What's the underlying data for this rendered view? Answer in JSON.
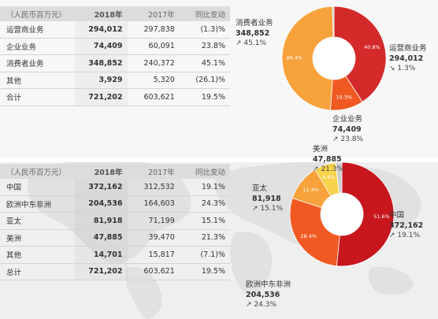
{
  "table1": {
    "header": {
      "label": "（人民币百万元）",
      "y2018": "2018年",
      "y2017": "2017年",
      "change": "同比变动"
    },
    "rows": [
      {
        "label": "运营商业务",
        "y2018": "294,012",
        "y2017": "297,838",
        "change": "(1.3)%"
      },
      {
        "label": "企业业务",
        "y2018": "74,409",
        "y2017": "60,091",
        "change": "23.8%"
      },
      {
        "label": "消费者业务",
        "y2018": "348,852",
        "y2017": "240,372",
        "change": "45.1%"
      },
      {
        "label": "其他",
        "y2018": "3,929",
        "y2017": "5,320",
        "change": "(26.1)%"
      },
      {
        "label": "合计",
        "y2018": "721,202",
        "y2017": "603,621",
        "change": "19.5%"
      }
    ]
  },
  "table2": {
    "header": {
      "label": "（人民币百万元）",
      "y2018": "2018年",
      "y2017": "2017年",
      "change": "同比变动"
    },
    "rows": [
      {
        "label": "中国",
        "y2018": "372,162",
        "y2017": "312,532",
        "change": "19.1%"
      },
      {
        "label": "欧洲中东非洲",
        "y2018": "204,536",
        "y2017": "164,603",
        "change": "24.3%"
      },
      {
        "label": "亚太",
        "y2018": "81,918",
        "y2017": "71,199",
        "change": "15.1%"
      },
      {
        "label": "美洲",
        "y2018": "47,885",
        "y2017": "39,470",
        "change": "21.3%"
      },
      {
        "label": "其他",
        "y2018": "14,701",
        "y2017": "15,817",
        "change": "(7.1)%"
      },
      {
        "label": "总计",
        "y2018": "721,202",
        "y2017": "603,621",
        "change": "19.5%"
      }
    ]
  },
  "chart_data": [
    {
      "type": "pie",
      "title": "",
      "slices": [
        {
          "name": "运营商业务",
          "value": 40.8,
          "label": "40.8%",
          "color": "#d42a2a",
          "callout_value": "294,012",
          "callout_change": "1.3%",
          "direction": "down"
        },
        {
          "name": "企业业务",
          "value": 10.3,
          "label": "10.3%",
          "color": "#f05a22",
          "callout_value": "74,409",
          "callout_change": "23.8%",
          "direction": "up"
        },
        {
          "name": "消费者业务",
          "value": 48.4,
          "label": "48.4%",
          "color": "#f8a23c",
          "callout_value": "348,852",
          "callout_change": "45.1%",
          "direction": "up"
        },
        {
          "name": "其他",
          "value": 0.5,
          "label": "",
          "color": "#bdbdbd",
          "callout_value": "",
          "callout_change": "",
          "direction": ""
        }
      ]
    },
    {
      "type": "pie",
      "title": "",
      "slices": [
        {
          "name": "中国",
          "value": 51.6,
          "label": "51.6%",
          "color": "#c8161d",
          "callout_value": "372,162",
          "callout_change": "19.1%",
          "direction": "up"
        },
        {
          "name": "欧洲中东非洲",
          "value": 28.4,
          "label": "28.4%",
          "color": "#f05a22",
          "callout_value": "204,536",
          "callout_change": "24.3%",
          "direction": "up"
        },
        {
          "name": "亚太",
          "value": 11.4,
          "label": "11.4%",
          "color": "#f8a23c",
          "callout_value": "81,918",
          "callout_change": "15.1%",
          "direction": "up"
        },
        {
          "name": "美洲",
          "value": 6.6,
          "label": "6.6%",
          "color": "#f7d24a",
          "callout_value": "47,885",
          "callout_change": "21.3%",
          "direction": "up"
        },
        {
          "name": "其他",
          "value": 2.0,
          "label": "",
          "color": "#cfcfcf",
          "callout_value": "",
          "callout_change": "",
          "direction": ""
        }
      ]
    }
  ],
  "icons": {
    "up": "arrow-up-right-icon",
    "down": "arrow-down-right-icon"
  }
}
